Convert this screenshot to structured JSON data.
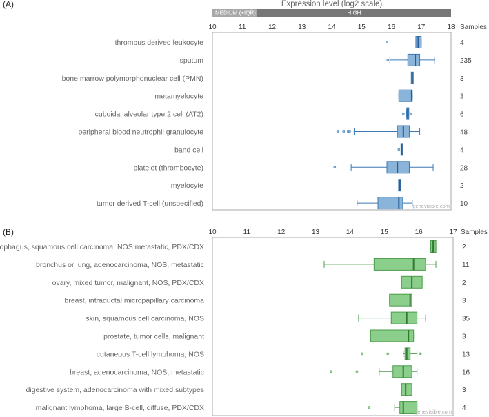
{
  "chart_data": [
    {
      "type": "boxplot",
      "panel": "(A)",
      "title": "Expression level (log2 scale)",
      "bands": [
        {
          "label": "MEDIUM (+IQR)",
          "range": [
            10,
            11.5
          ]
        },
        {
          "label": "HIGH",
          "range": [
            11.5,
            18
          ]
        }
      ],
      "band_colors": {
        "medium": "#a8a8a8",
        "high": "#777777"
      },
      "xlim": [
        10,
        18
      ],
      "ticks": [
        "10",
        "11",
        "12",
        "13",
        "14",
        "15",
        "16",
        "17",
        "18"
      ],
      "samples_header": "Samples",
      "watermark": "genevisible.com",
      "colors": {
        "fill": "#8ab4d9",
        "stroke": "#3c78b4",
        "median": "#2a5d91"
      },
      "rows": [
        {
          "label": "thrombus derived leukocyte",
          "samples": "4",
          "whisker_low": 16.82,
          "q1": 16.82,
          "median": 16.9,
          "q3": 17.0,
          "whisker_high": 17.0,
          "outliers": [
            15.85
          ]
        },
        {
          "label": "sputum",
          "samples": "235",
          "whisker_low": 15.95,
          "q1": 16.55,
          "median": 16.8,
          "q3": 16.95,
          "whisker_high": 17.45,
          "outliers": [
            15.88
          ]
        },
        {
          "label": "bone marrow polymorphonuclear cell (PMN)",
          "samples": "3",
          "whisker_low": 16.68,
          "q1": 16.68,
          "median": 16.7,
          "q3": 16.72,
          "whisker_high": 16.72,
          "outliers": []
        },
        {
          "label": "metamyelocyte",
          "samples": "3",
          "whisker_low": 16.25,
          "q1": 16.25,
          "median": 16.68,
          "q3": 16.7,
          "whisker_high": 16.7,
          "outliers": []
        },
        {
          "label": "cuboidal alveolar type 2 cell (AT2)",
          "samples": "6",
          "whisker_low": 16.5,
          "q1": 16.52,
          "median": 16.55,
          "q3": 16.58,
          "whisker_high": 16.58,
          "outliers": [
            16.4,
            16.65
          ]
        },
        {
          "label": "peripheral blood neutrophil granulocyte",
          "samples": "48",
          "whisker_low": 14.75,
          "q1": 16.2,
          "median": 16.4,
          "q3": 16.6,
          "whisker_high": 16.95,
          "outliers": [
            14.2,
            14.4,
            14.55,
            14.6
          ]
        },
        {
          "label": "band cell",
          "samples": "4",
          "whisker_low": 16.33,
          "q1": 16.33,
          "median": 16.35,
          "q3": 16.38,
          "whisker_high": 16.38,
          "outliers": [
            16.25
          ]
        },
        {
          "label": "platelet (thrombocyte)",
          "samples": "28",
          "whisker_low": 14.65,
          "q1": 15.85,
          "median": 16.2,
          "q3": 16.6,
          "whisker_high": 17.4,
          "outliers": [
            14.1
          ]
        },
        {
          "label": "myelocyte",
          "samples": "2",
          "whisker_low": 16.25,
          "q1": 16.25,
          "median": 16.28,
          "q3": 16.3,
          "whisker_high": 16.3,
          "outliers": []
        },
        {
          "label": "tumor derived T-cell (unspecified)",
          "samples": "10",
          "whisker_low": 14.85,
          "q1": 15.55,
          "median": 16.25,
          "q3": 16.38,
          "whisker_high": 16.7,
          "outliers": []
        }
      ]
    },
    {
      "type": "boxplot",
      "panel": "(B)",
      "xlim": [
        10,
        17
      ],
      "ticks": [
        "10",
        "11",
        "12",
        "13",
        "14",
        "15",
        "16",
        "17"
      ],
      "samples_header": "Samples",
      "watermark": "genevisible.com",
      "colors": {
        "fill": "#8cce8c",
        "stroke": "#4a9c4a",
        "median": "#2f7a2f"
      },
      "rows": [
        {
          "label": "esophagus, squamous cell carcinoma, NOS,metastatic, PDX/CDX",
          "samples": "2",
          "whisker_low": 16.35,
          "q1": 16.35,
          "median": 16.42,
          "q3": 16.5,
          "whisker_high": 16.5,
          "outliers": []
        },
        {
          "label": "bronchus or lung, adenocarcinoma, NOS, metastatic",
          "samples": "11",
          "whisker_low": 13.25,
          "q1": 14.7,
          "median": 15.85,
          "q3": 16.2,
          "whisker_high": 16.5,
          "outliers": []
        },
        {
          "label": "ovary, mixed tumor, malignant, NOS, PDX/CDX",
          "samples": "2",
          "whisker_low": 15.5,
          "q1": 15.5,
          "median": 15.8,
          "q3": 16.1,
          "whisker_high": 16.1,
          "outliers": []
        },
        {
          "label": "breast, intraductal micropapillary carcinoma",
          "samples": "3",
          "whisker_low": 15.15,
          "q1": 15.15,
          "median": 15.75,
          "q3": 15.8,
          "whisker_high": 15.8,
          "outliers": []
        },
        {
          "label": "skin, squamous cell carcinoma, NOS",
          "samples": "35",
          "whisker_low": 14.25,
          "q1": 15.2,
          "median": 15.65,
          "q3": 15.95,
          "whisker_high": 16.2,
          "outliers": []
        },
        {
          "label": "prostate, tumor cells, malignant",
          "samples": "3",
          "whisker_low": 14.6,
          "q1": 14.6,
          "median": 15.7,
          "q3": 15.85,
          "whisker_high": 15.85,
          "outliers": []
        },
        {
          "label": "cutaneous T-cell lymphoma, NOS",
          "samples": "13",
          "whisker_low": 15.55,
          "q1": 15.6,
          "median": 15.65,
          "q3": 15.75,
          "whisker_high": 15.95,
          "outliers": [
            14.35,
            15.1,
            16.05
          ]
        },
        {
          "label": "breast, adenocarcinoma, NOS, metastatic",
          "samples": "16",
          "whisker_low": 14.85,
          "q1": 15.25,
          "median": 15.55,
          "q3": 15.8,
          "whisker_high": 15.95,
          "outliers": [
            13.45,
            14.2
          ]
        },
        {
          "label": "digestive system, adenocarcinoma with mixed subtypes",
          "samples": "3",
          "whisker_low": 15.5,
          "q1": 15.5,
          "median": 15.62,
          "q3": 15.8,
          "whisker_high": 15.8,
          "outliers": []
        },
        {
          "label": "malignant lymphoma, large B-cell, diffuse, PDX/CDX",
          "samples": "4",
          "whisker_low": 15.3,
          "q1": 15.45,
          "median": 15.55,
          "q3": 15.95,
          "whisker_high": 15.95,
          "outliers": [
            14.55
          ]
        }
      ]
    }
  ]
}
